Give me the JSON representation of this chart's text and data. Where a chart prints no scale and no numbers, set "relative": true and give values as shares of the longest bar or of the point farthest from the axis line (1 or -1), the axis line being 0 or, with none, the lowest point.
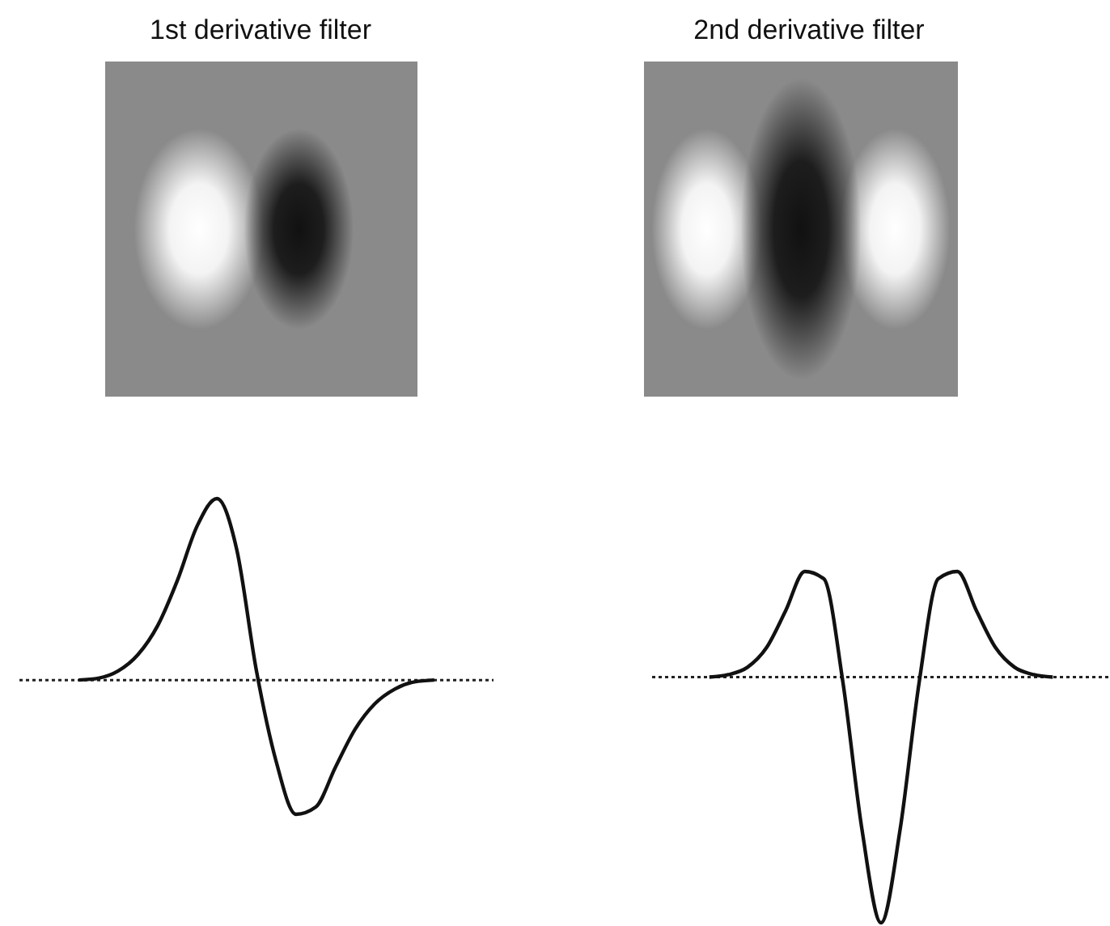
{
  "chart_data": [
    {
      "type": "line",
      "title": "1st derivative filter",
      "relative": true,
      "color": "#111111",
      "line_style": "solid",
      "categories": [
        null,
        null,
        null,
        null,
        null,
        null,
        null,
        null,
        null,
        null,
        null,
        null,
        null,
        null,
        null,
        null,
        null,
        null,
        null,
        null,
        null,
        null,
        null,
        null,
        null
      ],
      "values": [
        null,
        null,
        null,
        0,
        0.01,
        0.05,
        0.14,
        0.3,
        0.55,
        0.85,
        1,
        0.72,
        0.05,
        -0.45,
        -0.74,
        -0.7,
        -0.48,
        -0.27,
        -0.13,
        -0.05,
        -0.01,
        0,
        null,
        null,
        null
      ],
      "ref_lines": [
        {
          "axis": "y",
          "value": 0,
          "line_style": "dotted",
          "color": "#222222"
        }
      ]
    },
    {
      "type": "line",
      "title": "2nd derivative filter",
      "relative": true,
      "color": "#111111",
      "line_style": "solid",
      "categories": [
        null,
        null,
        null,
        null,
        null,
        null,
        null,
        null,
        null,
        null,
        null,
        null,
        null,
        null,
        null,
        null,
        null,
        null,
        null,
        null,
        null,
        null,
        null,
        null,
        null
      ],
      "values": [
        null,
        null,
        null,
        0,
        0.01,
        0.04,
        0.12,
        0.27,
        0.43,
        0.4,
        -0.02,
        -0.62,
        -1,
        -0.62,
        -0.02,
        0.4,
        0.43,
        0.27,
        0.12,
        0.04,
        0.01,
        0,
        null,
        null,
        null
      ],
      "ref_lines": [
        {
          "axis": "y",
          "value": 0,
          "line_style": "dotted",
          "color": "#222222"
        }
      ]
    }
  ]
}
